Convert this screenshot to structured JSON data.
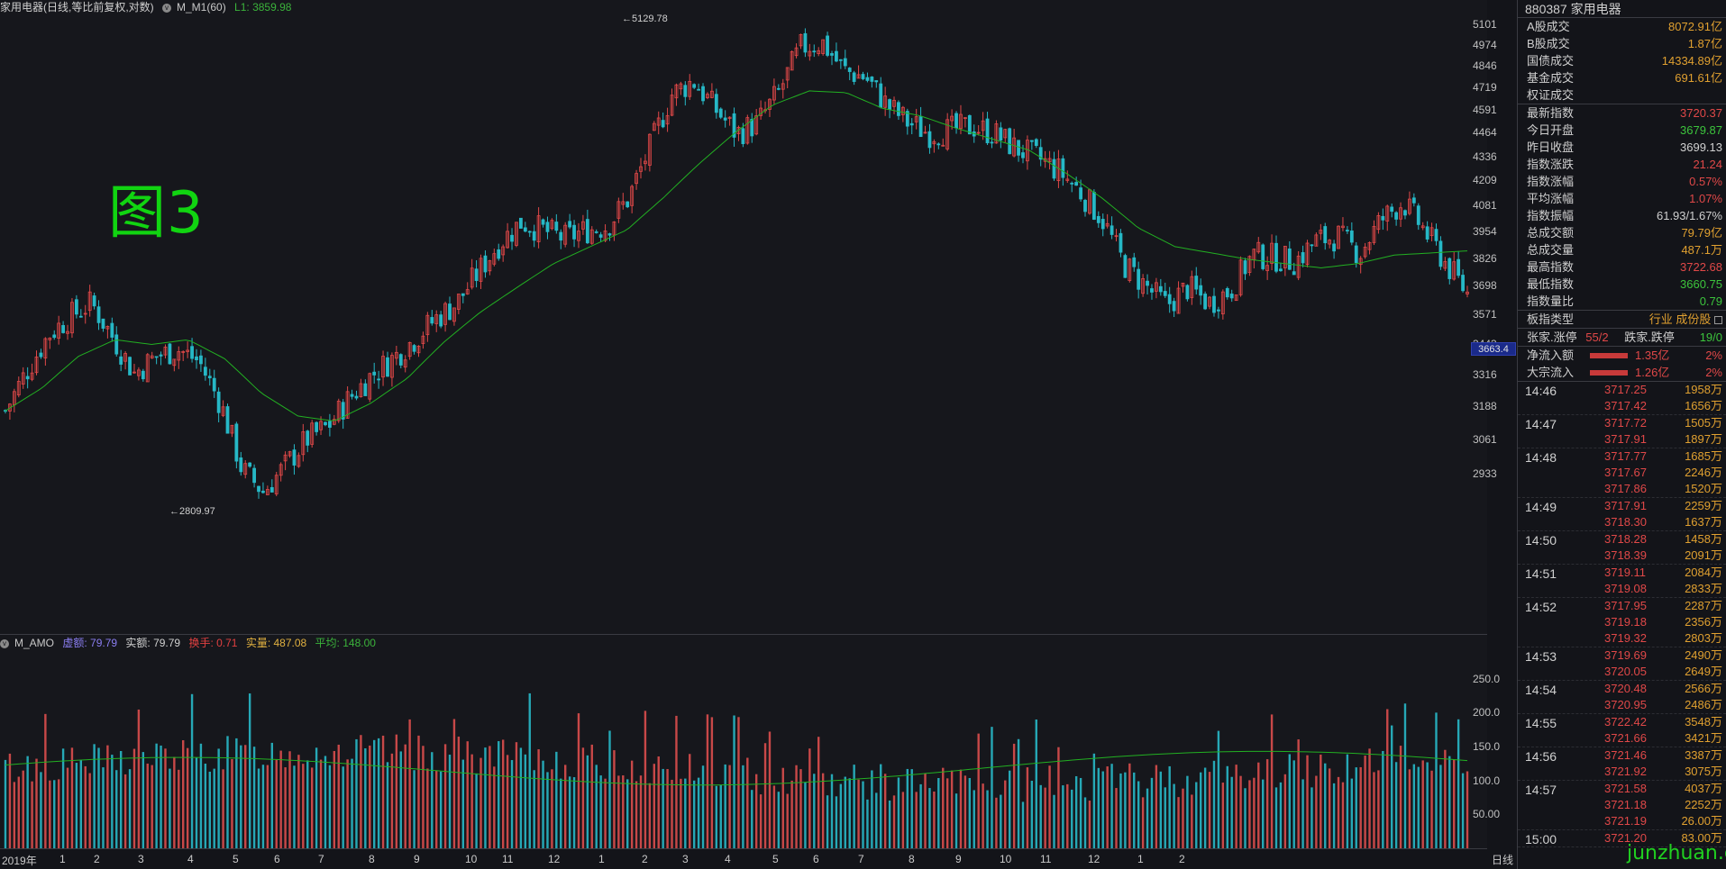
{
  "header": {
    "title": "家用电器(日线,等比前复权,对数)",
    "indicator": "M_M1(60)",
    "l1": "L1: 3859.98"
  },
  "figure_label": "图3",
  "price_axis": [
    "5101",
    "4974",
    "4846",
    "4719",
    "4591",
    "4464",
    "4336",
    "4209",
    "4081",
    "3954",
    "3826",
    "3698",
    "3571",
    "3443",
    "3316",
    "3188",
    "3061",
    "2933"
  ],
  "price_axis_ticks": [
    5101,
    4974,
    4846,
    4719,
    4591,
    4464,
    4336,
    4209,
    4081,
    3954,
    3826,
    3698,
    3571,
    3443,
    3316,
    3188,
    3061,
    2933
  ],
  "current_price": "3663.4",
  "annotations": {
    "high": "5129.78",
    "low": "2809.97"
  },
  "volume_header": {
    "name": "M_AMO",
    "virtual": "虚额: 79.79",
    "real": "实额: 79.79",
    "turnover": "换手: 0.71",
    "real_vol": "实量: 487.08",
    "avg": "平均: 148.00"
  },
  "volume_axis": [
    "250.0",
    "200.0",
    "150.0",
    "100.0",
    "50.00"
  ],
  "x_axis": [
    "2019年",
    "1",
    "2",
    "3",
    "4",
    "5",
    "6",
    "7",
    "8",
    "9",
    "10",
    "11",
    "12",
    "1",
    "2",
    "3",
    "4",
    "5",
    "6",
    "7",
    "8",
    "9",
    "10",
    "11",
    "12",
    "1",
    "2"
  ],
  "period_button": "日线",
  "chart_data": {
    "type": "candlestick",
    "scale": "log",
    "ylim": [
      2809.97,
      5129.78
    ],
    "high_label": "5129.78",
    "low_label": "2809.97",
    "ma_label": "L1: 3859.98",
    "volume_ylim": [
      0,
      260
    ],
    "volume_avg": 148.0,
    "month_labels": [
      "2019年",
      "1",
      "2",
      "3",
      "4",
      "5",
      "6",
      "7",
      "8",
      "9",
      "10",
      "11",
      "12",
      "1",
      "2",
      "3",
      "4",
      "5",
      "6",
      "7",
      "8",
      "9",
      "10",
      "11",
      "12",
      "1",
      "2"
    ],
    "close_path": [
      3170,
      3330,
      3480,
      3560,
      3620,
      3470,
      3320,
      3390,
      3420,
      3370,
      3200,
      2950,
      2870,
      2960,
      3060,
      3110,
      3220,
      3310,
      3380,
      3460,
      3550,
      3620,
      3760,
      3900,
      4000,
      3960,
      3920,
      3960,
      3980,
      4120,
      4390,
      4680,
      4760,
      4600,
      4460,
      4520,
      4700,
      4960,
      4990,
      4820,
      4780,
      4620,
      4520,
      4460,
      4480,
      4500,
      4460,
      4380,
      4330,
      4260,
      4150,
      4020,
      3800,
      3700,
      3610,
      3690,
      3620,
      3680,
      3840,
      3830,
      3810,
      3910,
      3930,
      3850,
      4010,
      4100,
      3960,
      3800,
      3663
    ],
    "ma_path": [
      3170,
      3260,
      3390,
      3460,
      3440,
      3460,
      3380,
      3240,
      3150,
      3130,
      3200,
      3300,
      3450,
      3580,
      3690,
      3800,
      3880,
      3960,
      4120,
      4300,
      4470,
      4620,
      4700,
      4690,
      4600,
      4560,
      4490,
      4430,
      4370,
      4250,
      4120,
      3970,
      3880,
      3850,
      3820,
      3800,
      3780,
      3800,
      3840,
      3850,
      3860
    ]
  },
  "panel": {
    "code_name": "880387 家用电器",
    "turnover_rows": [
      {
        "label": "A股成交",
        "value": "8072.91亿"
      },
      {
        "label": "B股成交",
        "value": "1.87亿"
      },
      {
        "label": "国债成交",
        "value": "14334.89亿"
      },
      {
        "label": "基金成交",
        "value": "691.61亿"
      },
      {
        "label": "权证成交",
        "value": ""
      }
    ],
    "index_rows": [
      {
        "label": "最新指数",
        "value": "3720.37",
        "color": "red"
      },
      {
        "label": "今日开盘",
        "value": "3679.87",
        "color": "green"
      },
      {
        "label": "昨日收盘",
        "value": "3699.13",
        "color": "white"
      },
      {
        "label": "指数涨跌",
        "value": "21.24",
        "color": "red"
      },
      {
        "label": "指数涨幅",
        "value": "0.57%",
        "color": "red"
      },
      {
        "label": "平均涨幅",
        "value": "1.07%",
        "color": "red"
      },
      {
        "label": "指数振幅",
        "value": "61.93/1.67%",
        "color": "white"
      },
      {
        "label": "总成交额",
        "value": "79.79亿",
        "color": "gold"
      },
      {
        "label": "总成交量",
        "value": "487.1万",
        "color": "gold"
      },
      {
        "label": "最高指数",
        "value": "3722.68",
        "color": "red"
      },
      {
        "label": "最低指数",
        "value": "3660.75",
        "color": "green"
      },
      {
        "label": "指数量比",
        "value": "0.79",
        "color": "green"
      }
    ],
    "type_row": {
      "label": "板指类型",
      "value": "行业 成份股"
    },
    "limit_row": {
      "up_label": "张家.涨停",
      "up_value": "55/2",
      "down_label": "跌家.跌停",
      "down_value": "19/0"
    },
    "flow_rows": [
      {
        "label": "净流入额",
        "value": "1.35亿",
        "pct": "2%"
      },
      {
        "label": "大宗流入",
        "value": "1.26亿",
        "pct": "2%"
      }
    ],
    "ticks": [
      {
        "time": "14:46",
        "rows": [
          [
            "3717.25",
            "1958万"
          ],
          [
            "3717.42",
            "1656万"
          ]
        ]
      },
      {
        "time": "14:47",
        "rows": [
          [
            "3717.72",
            "1505万"
          ],
          [
            "3717.91",
            "1897万"
          ]
        ]
      },
      {
        "time": "14:48",
        "rows": [
          [
            "3717.77",
            "1685万"
          ],
          [
            "3717.67",
            "2246万"
          ],
          [
            "3717.86",
            "1520万"
          ]
        ]
      },
      {
        "time": "14:49",
        "rows": [
          [
            "3717.91",
            "2259万"
          ],
          [
            "3718.30",
            "1637万"
          ]
        ]
      },
      {
        "time": "14:50",
        "rows": [
          [
            "3718.28",
            "1458万"
          ],
          [
            "3718.39",
            "2091万"
          ]
        ]
      },
      {
        "time": "14:51",
        "rows": [
          [
            "3719.11",
            "2084万"
          ],
          [
            "3719.08",
            "2833万"
          ]
        ]
      },
      {
        "time": "14:52",
        "rows": [
          [
            "3717.95",
            "2287万"
          ],
          [
            "3719.18",
            "2356万"
          ],
          [
            "3719.32",
            "2803万"
          ]
        ]
      },
      {
        "time": "14:53",
        "rows": [
          [
            "3719.69",
            "2490万"
          ],
          [
            "3720.05",
            "2649万"
          ]
        ]
      },
      {
        "time": "14:54",
        "rows": [
          [
            "3720.48",
            "2566万"
          ],
          [
            "3720.95",
            "2486万"
          ]
        ]
      },
      {
        "time": "14:55",
        "rows": [
          [
            "3722.42",
            "3548万"
          ],
          [
            "3721.66",
            "3421万"
          ]
        ]
      },
      {
        "time": "14:56",
        "rows": [
          [
            "3721.46",
            "3387万"
          ],
          [
            "3721.92",
            "3075万"
          ]
        ]
      },
      {
        "time": "14:57",
        "rows": [
          [
            "3721.58",
            "4037万"
          ],
          [
            "3721.18",
            "2252万"
          ],
          [
            "3721.19",
            "26.00万"
          ]
        ]
      },
      {
        "time": "15:00",
        "rows": [
          [
            "3721.20",
            "83.00万"
          ]
        ]
      }
    ]
  },
  "watermark": "junzhuan.com"
}
